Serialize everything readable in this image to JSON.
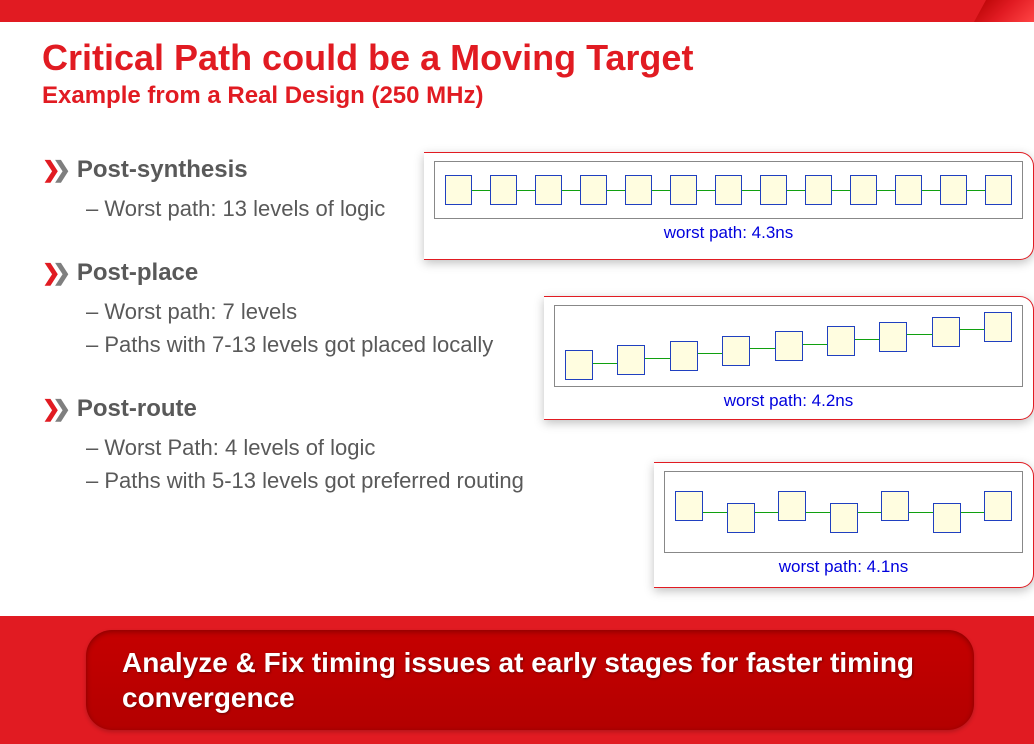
{
  "colors": {
    "brand_red": "#e11b22",
    "dark_red": "#b30000",
    "text_gray": "#595959",
    "caption_blue": "#0000dd",
    "block_border": "#2040c0",
    "block_fill": "#fffde0",
    "wire_green": "#10a010",
    "white": "#ffffff"
  },
  "title": {
    "main": "Critical Path could be a Moving Target",
    "sub": "Example from a Real Design (250 MHz)"
  },
  "sections": [
    {
      "heading": "Post-synthesis",
      "items": [
        "Worst path: 13 levels of logic"
      ]
    },
    {
      "heading": "Post-place",
      "items": [
        "Worst path: 7 levels",
        "Paths with 7-13 levels got placed locally"
      ]
    },
    {
      "heading": "Post-route",
      "items": [
        "Worst Path: 4 levels of logic",
        "Paths with 5-13 levels got preferred routing"
      ]
    }
  ],
  "diagrams": [
    {
      "caption": "worst path: 4.3ns",
      "blocks": 13
    },
    {
      "caption": "worst path: 4.2ns",
      "blocks": 9
    },
    {
      "caption": "worst path: 4.1ns",
      "blocks": 7
    }
  ],
  "callout": "Analyze & Fix timing issues at early stages for faster timing convergence"
}
